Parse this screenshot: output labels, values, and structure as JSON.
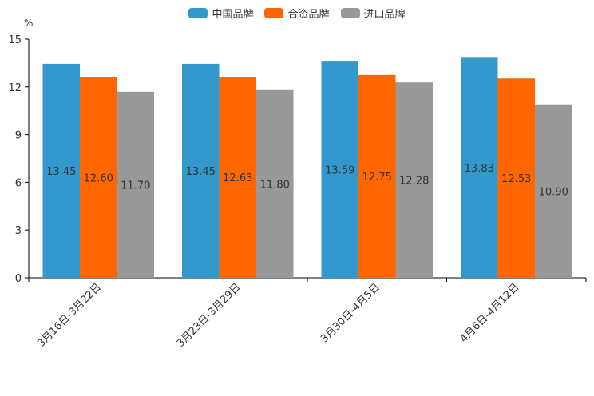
{
  "chart_data": {
    "type": "bar",
    "title": "",
    "ylabel": "%",
    "xlabel": "",
    "ylim": [
      0,
      15
    ],
    "yticks": [
      0,
      3,
      6,
      9,
      12,
      15
    ],
    "categories": [
      "3月16日-3月22日",
      "3月23日-3月29日",
      "3月30日-4月5日",
      "4月6日-4月12日"
    ],
    "series": [
      {
        "name": "中国品牌",
        "color": "#3399CC",
        "values": [
          13.45,
          13.45,
          13.59,
          13.83
        ],
        "labels": [
          "13.45",
          "13.45",
          "13.59",
          "13.83"
        ]
      },
      {
        "name": "合资品牌",
        "color": "#FF6600",
        "values": [
          12.6,
          12.63,
          12.75,
          12.53
        ],
        "labels": [
          "12.60",
          "12.63",
          "12.75",
          "12.53"
        ]
      },
      {
        "name": "进口品牌",
        "color": "#999999",
        "values": [
          11.7,
          11.8,
          12.28,
          10.9
        ],
        "labels": [
          "11.70",
          "11.80",
          "12.28",
          "10.90"
        ]
      }
    ],
    "legend_position": "top-center"
  }
}
